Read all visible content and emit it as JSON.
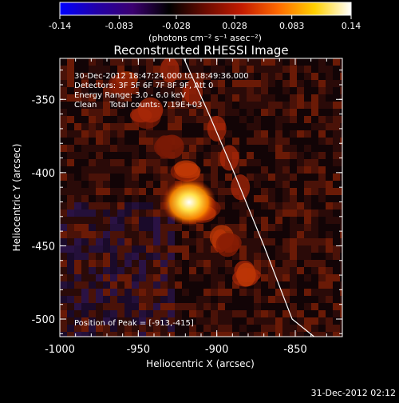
{
  "colorbar": {
    "ticks": [
      "-0.14",
      "-0.083",
      "-0.028",
      "0.028",
      "0.083",
      "0.14"
    ],
    "units_label": "(photons cm⁻² s⁻¹ asec⁻²)",
    "stops": [
      "#0000ff",
      "#2200a8",
      "#3b0070",
      "#000000",
      "#6b0b00",
      "#c41b00",
      "#ff6a00",
      "#ffd000",
      "#ffffff"
    ]
  },
  "title": "Reconstructed RHESSI Image",
  "info": {
    "time_range": "30-Dec-2012 18:47:24.000 to 18:49:36.000",
    "detectors": "Detectors: 3F 5F 6F 7F 8F 9F, Att 0",
    "energy": "Energy Range: 3.0 - 6.0 keV",
    "clean": "Clean     Total counts: 7.19E+03"
  },
  "peak_label": "Position of Peak = [-913,-415]",
  "axes": {
    "xlabel": "Heliocentric X (arcsec)",
    "ylabel": "Heliocentric Y (arcsec)",
    "x_ticks": [
      "-1000",
      "-950",
      "-900",
      "-850"
    ],
    "y_ticks": [
      "-350",
      "-400",
      "-450",
      "-500"
    ]
  },
  "chart_data": {
    "type": "heatmap",
    "title": "Reconstructed RHESSI Image",
    "xlabel": "Heliocentric X (arcsec)",
    "ylabel": "Heliocentric Y (arcsec)",
    "xlim": [
      -1000,
      -820
    ],
    "ylim": [
      -512,
      -322
    ],
    "x_ticks": [
      -1000,
      -950,
      -900,
      -850
    ],
    "y_ticks": [
      -350,
      -400,
      -450,
      -500
    ],
    "colorbar_range": [
      -0.14,
      0.14
    ],
    "peak": {
      "x": -913,
      "y": -415
    },
    "limb_arc": [
      [
        -921,
        -322
      ],
      [
        -905,
        -360
      ],
      [
        -889,
        -400
      ],
      [
        -870,
        -450
      ],
      [
        -852,
        -500
      ],
      [
        -838,
        -512
      ]
    ]
  },
  "footer_timestamp": "31-Dec-2012 02:12"
}
